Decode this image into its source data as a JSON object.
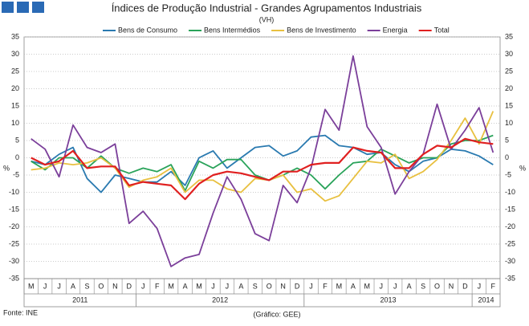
{
  "chart_data": {
    "type": "line",
    "title": "Índices de Produção Industrial - Grandes Agrupamentos Industriais",
    "subtitle": "(VH)",
    "y_label": "%",
    "source": "Fonte: INE",
    "credit": "(Gráfico: GEE)",
    "categories": [
      "M",
      "J",
      "J",
      "A",
      "S",
      "O",
      "N",
      "D",
      "J",
      "F",
      "M",
      "A",
      "M",
      "J",
      "J",
      "A",
      "S",
      "O",
      "N",
      "D",
      "J",
      "F",
      "M",
      "A",
      "M",
      "J",
      "J",
      "A",
      "S",
      "O",
      "N",
      "D",
      "J",
      "F"
    ],
    "years": [
      "2011",
      "2012",
      "2013",
      "2014"
    ],
    "ylim": [
      -35,
      35
    ],
    "yticks": [
      -35,
      -30,
      -25,
      -20,
      -15,
      -10,
      -5,
      0,
      5,
      10,
      15,
      20,
      25,
      30,
      35
    ],
    "grid": true,
    "legend": "top",
    "series": [
      {
        "name": "Bens de Consumo",
        "color": "#2a7ab0",
        "values": [
          -1,
          -2,
          1,
          3,
          -6,
          -10,
          -5,
          -6,
          -7,
          -7,
          -4,
          -8,
          0,
          2,
          -3,
          0,
          3,
          3.5,
          0.5,
          2,
          6,
          6.5,
          3.5,
          3,
          1,
          1.5,
          -2,
          -4,
          -1,
          0,
          2.5,
          2,
          0.5,
          -2
        ]
      },
      {
        "name": "Bens Intermédios",
        "color": "#2aa35a",
        "values": [
          -1,
          -3.5,
          0,
          0,
          -3,
          0.5,
          -3,
          -4.5,
          -3,
          -4,
          -2,
          -9.5,
          -1,
          -3,
          -0.5,
          -0.5,
          -5,
          -6.5,
          -5,
          -3,
          -5,
          -9,
          -5,
          -1.5,
          -1,
          2.5,
          0.5,
          -1.5,
          0,
          0,
          4,
          5,
          5,
          6.5
        ]
      },
      {
        "name": "Bens de Investimento",
        "color": "#e8c040",
        "values": [
          -3.5,
          -3,
          -1.5,
          -2,
          -1.5,
          0,
          -3,
          -8.5,
          -6.5,
          -5.5,
          -3,
          -10,
          -6.5,
          -6.5,
          -9,
          -10,
          -6,
          -6.5,
          -5,
          -10,
          -9,
          -12.5,
          -11,
          -6,
          -1,
          -1.5,
          1,
          -6,
          -4,
          -0.5,
          5,
          11.5,
          4,
          13.5
        ]
      },
      {
        "name": "Energia",
        "color": "#7b3f9a",
        "values": [
          5.5,
          2.5,
          -5.5,
          9.5,
          3,
          1.5,
          4,
          -19,
          -15.5,
          -20.5,
          -31.5,
          -29,
          -28,
          -16,
          -5.5,
          -12,
          -22,
          -24,
          -8,
          -13,
          -3,
          14,
          8,
          29.5,
          9,
          3,
          -10.5,
          -4,
          1,
          15.5,
          2.5,
          8,
          14.5,
          1.5
        ]
      },
      {
        "name": "Total",
        "color": "#e02020",
        "values": [
          0,
          -2,
          -1,
          2,
          -3,
          -2.5,
          -2.5,
          -8,
          -7,
          -7.5,
          -8,
          -12,
          -7.5,
          -5,
          -4,
          -4.5,
          -5.5,
          -6.5,
          -4,
          -4,
          -2,
          -1.5,
          -1.5,
          3,
          2,
          1.5,
          -3,
          -3,
          1,
          3.5,
          3,
          5.5,
          4.5,
          4
        ]
      }
    ]
  }
}
